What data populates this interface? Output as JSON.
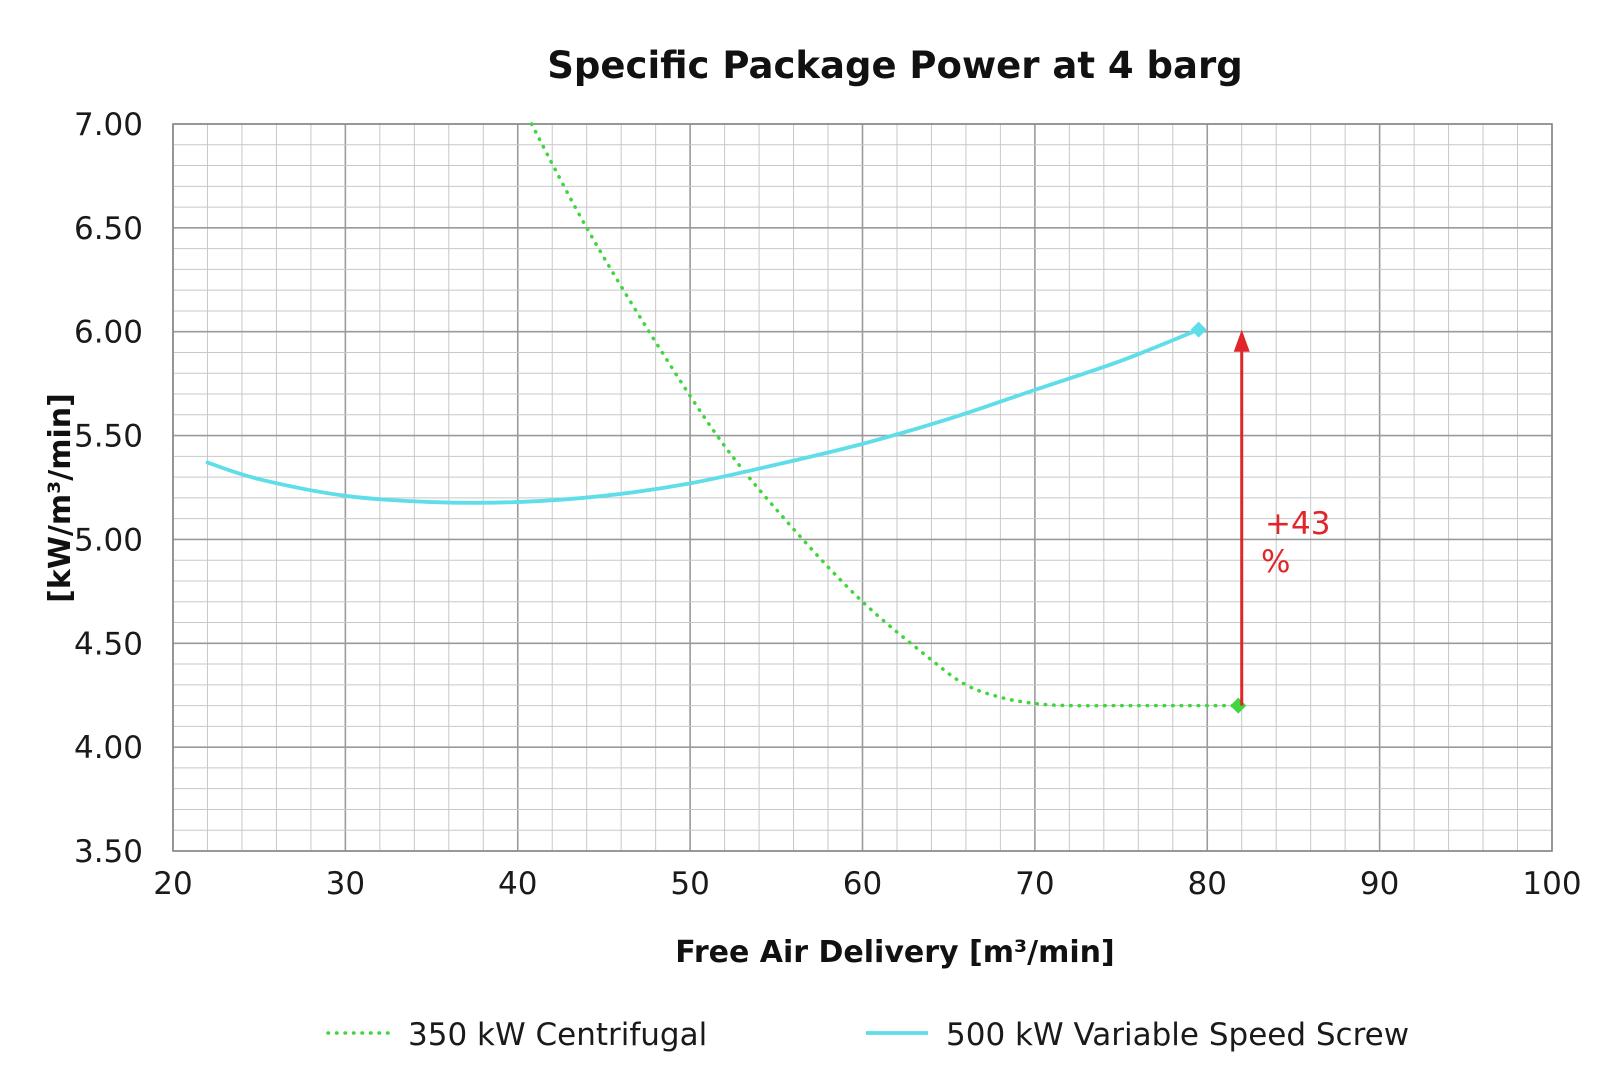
{
  "chart_data": {
    "type": "line",
    "title": "Specific Package Power at 4 barg",
    "xlabel": "Free Air Delivery [m³/min]",
    "ylabel": "[kW/m³/min]",
    "xlim": [
      20,
      100
    ],
    "ylim": [
      3.5,
      7.0
    ],
    "x_ticks": [
      "20",
      "30",
      "40",
      "50",
      "60",
      "70",
      "80",
      "90",
      "100"
    ],
    "y_ticks": [
      "3.50",
      "4.00",
      "4.50",
      "5.00",
      "5.50",
      "6.00",
      "6.50",
      "7.00"
    ],
    "grid": true,
    "legend_position": "bottom",
    "series": [
      {
        "name": "350 kW Centrifugal",
        "style": "dotted",
        "color": "#3fd63f",
        "x": [
          40.8,
          44,
          48,
          52,
          56,
          60,
          64,
          66,
          68,
          70,
          72,
          75,
          78,
          81.8
        ],
        "y": [
          7.0,
          6.5,
          5.95,
          5.45,
          5.05,
          4.7,
          4.42,
          4.3,
          4.24,
          4.21,
          4.2,
          4.2,
          4.2,
          4.2
        ],
        "end_marker": {
          "x": 81.8,
          "y": 4.2
        }
      },
      {
        "name": "500 kW Variable Speed Screw",
        "style": "solid",
        "color": "#5fdde8",
        "x": [
          22,
          25,
          30,
          35,
          40,
          45,
          50,
          55,
          60,
          65,
          70,
          75,
          79.5
        ],
        "y": [
          5.37,
          5.29,
          5.21,
          5.18,
          5.18,
          5.21,
          5.27,
          5.36,
          5.46,
          5.58,
          5.72,
          5.86,
          6.01
        ],
        "end_marker": {
          "x": 79.5,
          "y": 6.01
        }
      }
    ],
    "annotation": {
      "text_line1": "+43",
      "text_line2": "%",
      "color": "#e0262a",
      "arrow_x": 82,
      "arrow_from_y": 4.2,
      "arrow_to_y": 6.0
    }
  }
}
